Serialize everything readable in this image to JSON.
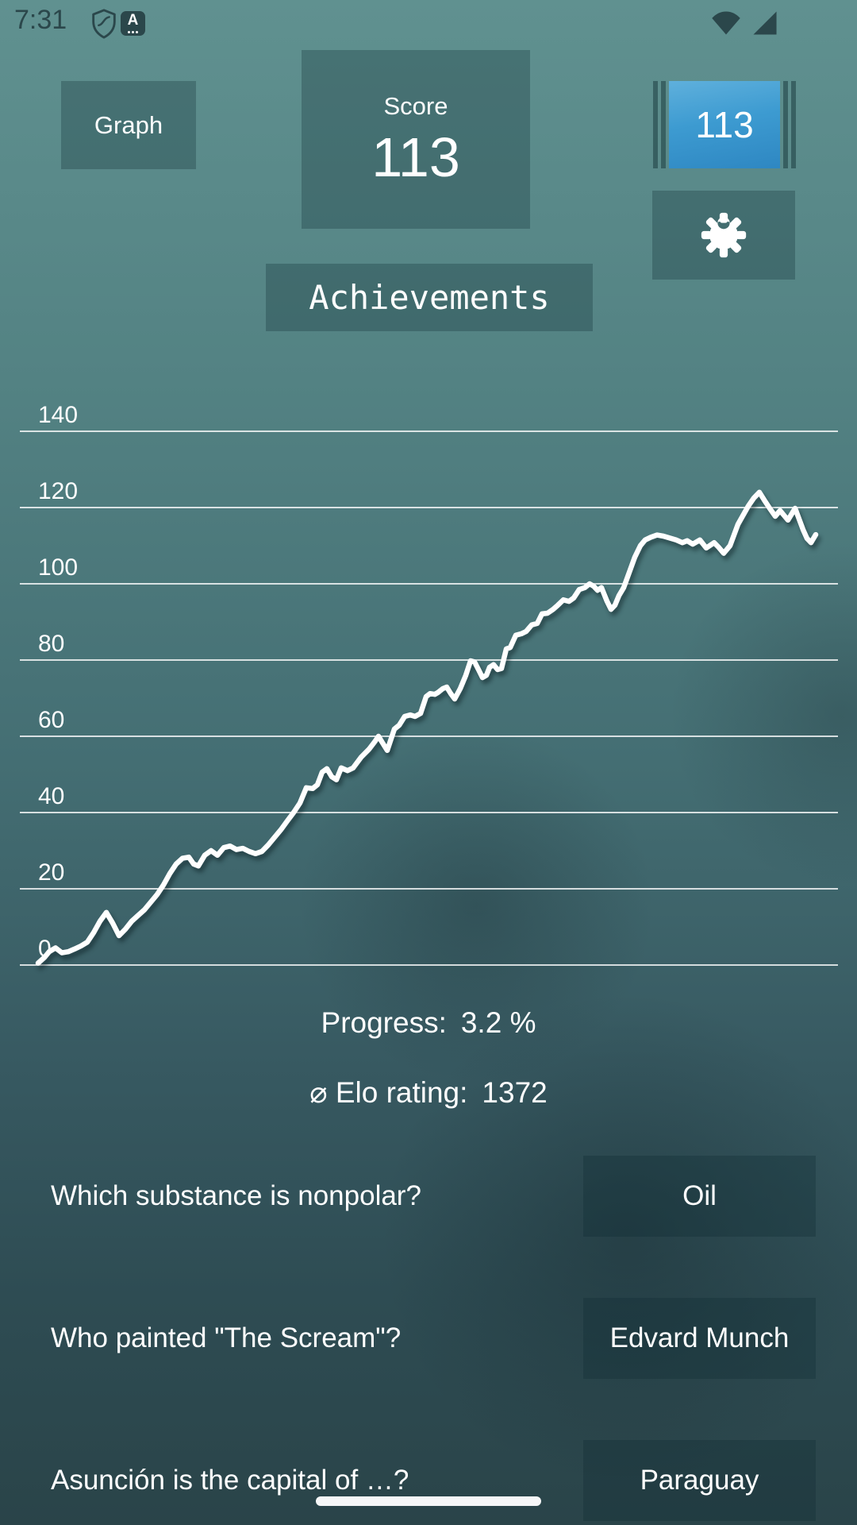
{
  "status_bar": {
    "time": "7:31",
    "a_badge_letter": "A"
  },
  "header": {
    "graph_button_label": "Graph",
    "score_box": {
      "label": "Score",
      "value": "113"
    },
    "level_box": {
      "value": "113"
    },
    "achievements_button_label": "Achievements"
  },
  "chart_data": {
    "type": "line",
    "title": "",
    "xlabel": "",
    "ylabel": "",
    "ylim": [
      0,
      140
    ],
    "y_ticks": [
      140,
      120,
      100,
      80,
      60,
      40,
      20,
      0
    ],
    "grid": true,
    "legend_position": "none",
    "series_name": "score",
    "points": [
      [
        48,
        0.5
      ],
      [
        56,
        2
      ],
      [
        62,
        3.5
      ],
      [
        70,
        4.5
      ],
      [
        78,
        3.2
      ],
      [
        86,
        3.5
      ],
      [
        94,
        4.2
      ],
      [
        102,
        5
      ],
      [
        110,
        6
      ],
      [
        118,
        8.5
      ],
      [
        126,
        11.5
      ],
      [
        134,
        13.8
      ],
      [
        142,
        11
      ],
      [
        150,
        7.7
      ],
      [
        158,
        9.4
      ],
      [
        166,
        11.5
      ],
      [
        174,
        13
      ],
      [
        182,
        14.5
      ],
      [
        190,
        16.5
      ],
      [
        198,
        18.5
      ],
      [
        206,
        21
      ],
      [
        214,
        24
      ],
      [
        222,
        26.5
      ],
      [
        230,
        28
      ],
      [
        238,
        28.3
      ],
      [
        244,
        26.5
      ],
      [
        250,
        26
      ],
      [
        258,
        28.8
      ],
      [
        266,
        30
      ],
      [
        274,
        28.8
      ],
      [
        282,
        30.8
      ],
      [
        290,
        31.2
      ],
      [
        298,
        30.3
      ],
      [
        306,
        30.6
      ],
      [
        314,
        29.8
      ],
      [
        322,
        29.2
      ],
      [
        330,
        29.8
      ],
      [
        338,
        31.5
      ],
      [
        346,
        33.5
      ],
      [
        354,
        35.5
      ],
      [
        362,
        37.8
      ],
      [
        370,
        40
      ],
      [
        378,
        42.5
      ],
      [
        386,
        46.5
      ],
      [
        394,
        46.3
      ],
      [
        400,
        47.3
      ],
      [
        406,
        50.6
      ],
      [
        412,
        51.5
      ],
      [
        418,
        49.4
      ],
      [
        424,
        48.6
      ],
      [
        430,
        51.7
      ],
      [
        438,
        51
      ],
      [
        445,
        51.7
      ],
      [
        455,
        54.5
      ],
      [
        465,
        56.6
      ],
      [
        472,
        58.5
      ],
      [
        477,
        60
      ],
      [
        482,
        58.3
      ],
      [
        488,
        56.3
      ],
      [
        497,
        61.9
      ],
      [
        503,
        62.9
      ],
      [
        510,
        65.2
      ],
      [
        517,
        65.6
      ],
      [
        523,
        65.2
      ],
      [
        530,
        66
      ],
      [
        537,
        70.4
      ],
      [
        542,
        71.2
      ],
      [
        548,
        71
      ],
      [
        552,
        71.5
      ],
      [
        558,
        72.5
      ],
      [
        563,
        72.9
      ],
      [
        568,
        71.2
      ],
      [
        573,
        69.8
      ],
      [
        580,
        72.5
      ],
      [
        587,
        76
      ],
      [
        593,
        79.8
      ],
      [
        598,
        79.5
      ],
      [
        603,
        77.5
      ],
      [
        608,
        75.4
      ],
      [
        613,
        76
      ],
      [
        617,
        78.1
      ],
      [
        622,
        78.8
      ],
      [
        627,
        77.5
      ],
      [
        632,
        77.8
      ],
      [
        638,
        82.9
      ],
      [
        643,
        83.3
      ],
      [
        650,
        86.5
      ],
      [
        657,
        86.9
      ],
      [
        663,
        87.5
      ],
      [
        670,
        89.2
      ],
      [
        677,
        89.6
      ],
      [
        683,
        92.1
      ],
      [
        690,
        92.3
      ],
      [
        697,
        93.3
      ],
      [
        703,
        94.4
      ],
      [
        710,
        95.8
      ],
      [
        717,
        95.4
      ],
      [
        723,
        96.3
      ],
      [
        730,
        98.5
      ],
      [
        737,
        99
      ],
      [
        743,
        100
      ],
      [
        748,
        99.4
      ],
      [
        753,
        98.3
      ],
      [
        758,
        99
      ],
      [
        765,
        95.4
      ],
      [
        770,
        93.3
      ],
      [
        775,
        94.4
      ],
      [
        780,
        96.9
      ],
      [
        786,
        99
      ],
      [
        793,
        103
      ],
      [
        800,
        107
      ],
      [
        807,
        110
      ],
      [
        813,
        111.5
      ],
      [
        820,
        112.2
      ],
      [
        828,
        112.8
      ],
      [
        836,
        112.5
      ],
      [
        844,
        112
      ],
      [
        852,
        111.5
      ],
      [
        860,
        110.8
      ],
      [
        866,
        111.3
      ],
      [
        873,
        110.4
      ],
      [
        882,
        111.5
      ],
      [
        890,
        109.4
      ],
      [
        900,
        110.8
      ],
      [
        906,
        109.5
      ],
      [
        912,
        108
      ],
      [
        920,
        110
      ],
      [
        930,
        115.6
      ],
      [
        943,
        120.4
      ],
      [
        950,
        122.5
      ],
      [
        957,
        124
      ],
      [
        963,
        122
      ],
      [
        970,
        119.8
      ],
      [
        977,
        117.7
      ],
      [
        983,
        119.2
      ],
      [
        993,
        116.7
      ],
      [
        1002,
        119.8
      ],
      [
        1012,
        114.2
      ],
      [
        1017,
        111.9
      ],
      [
        1022,
        110.8
      ],
      [
        1028,
        112.9
      ]
    ]
  },
  "stats": {
    "progress": {
      "label": "Progress:",
      "value": "3.2 %"
    },
    "elo": {
      "label": "⌀ Elo rating:",
      "value": "1372"
    }
  },
  "qa": [
    {
      "question": "Which substance is nonpolar?",
      "answer": "Oil"
    },
    {
      "question": "Who painted \"The Scream\"?",
      "answer": "Edvard Munch"
    },
    {
      "question": "Asunción is the capital of …?",
      "answer": "Paraguay"
    }
  ],
  "colors": {
    "accent_blue": "#3d9bd1",
    "background_top": "#609190",
    "background_bottom": "#2a4449",
    "status_icon": "#2b474b",
    "line": "#ffffff"
  }
}
